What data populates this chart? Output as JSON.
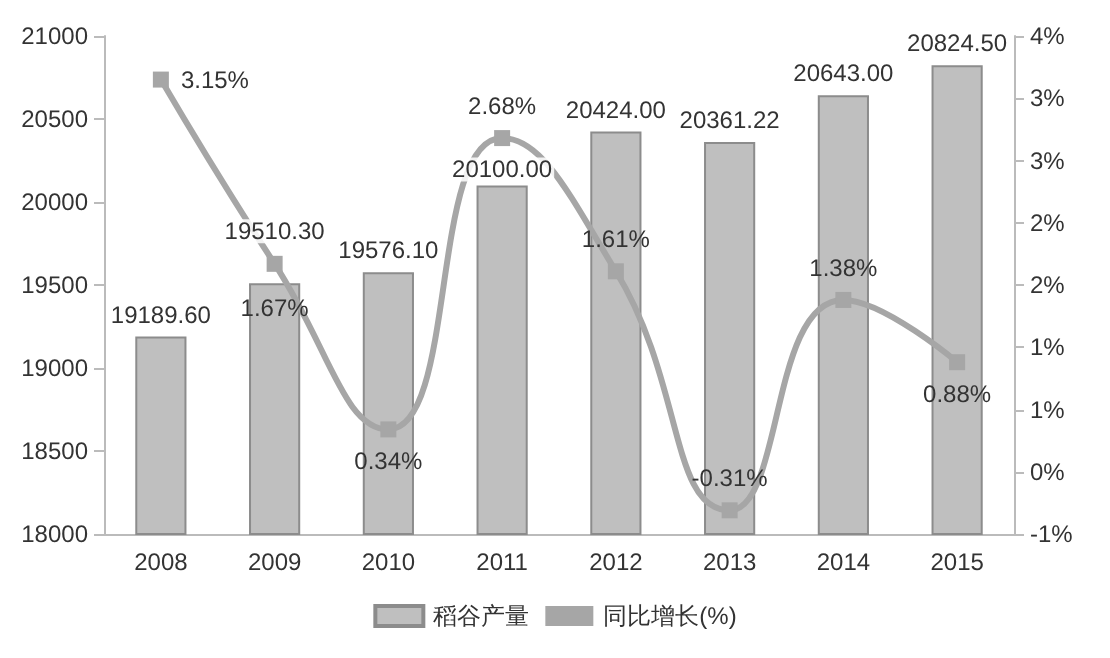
{
  "chart_data": {
    "type": "bar",
    "categories": [
      "2008",
      "2009",
      "2010",
      "2011",
      "2012",
      "2013",
      "2014",
      "2015"
    ],
    "series": [
      {
        "name": "稻谷产量",
        "color": "#bfbfbf",
        "values": [
          19189.6,
          19510.3,
          19576.1,
          20100,
          20424,
          20361.22,
          20643,
          20824.5
        ],
        "value_labels": [
          "19189.60",
          "19510.30",
          "19576.10",
          "20100.00",
          "20424.00",
          "20361.22",
          "20643.00",
          "20824.50"
        ]
      },
      {
        "name": "同比增长(%)",
        "type": "line",
        "axis": "y2",
        "color": "#a6a6a6",
        "values": [
          3.15,
          1.67,
          0.34,
          2.68,
          1.61,
          -0.31,
          1.38,
          0.88
        ],
        "value_labels": [
          "3.15%",
          "1.67%",
          "0.34%",
          "2.68%",
          "1.61%",
          "-0.31%",
          "1.38%",
          "0.88%"
        ]
      }
    ],
    "ylim": [
      18000,
      21000
    ],
    "yticks": [
      18000,
      18500,
      19000,
      19500,
      20000,
      20500,
      21000
    ],
    "y2lim": [
      -0.5,
      3.5
    ],
    "y2ticks": [
      {
        "value": -0.5,
        "label": "-1%"
      },
      {
        "value": 0,
        "label": "0%"
      },
      {
        "value": 0.5,
        "label": "1%"
      },
      {
        "value": 1,
        "label": "1%"
      },
      {
        "value": 1.5,
        "label": "2%"
      },
      {
        "value": 2,
        "label": "2%"
      },
      {
        "value": 2.5,
        "label": "3%"
      },
      {
        "value": 3,
        "label": "3%"
      },
      {
        "value": 3.5,
        "label": "4%"
      }
    ],
    "grid": false,
    "legend": "bottom",
    "marker": "square"
  }
}
